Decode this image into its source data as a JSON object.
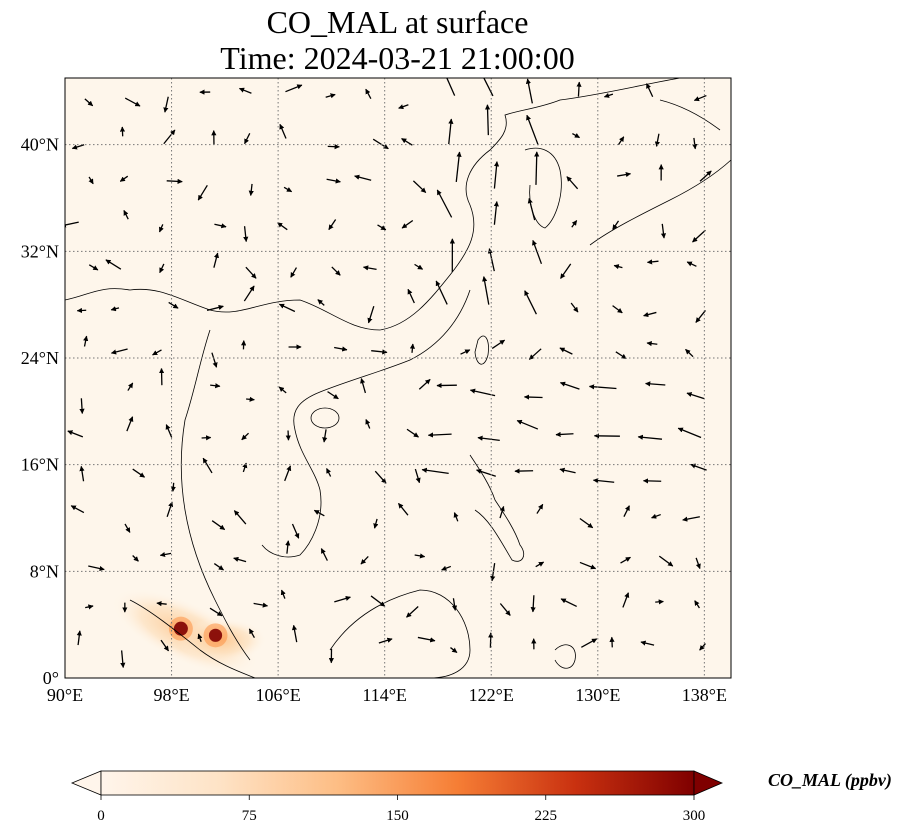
{
  "title": {
    "line1": "CO_MAL at surface",
    "line2": "Time: 2024-03-21 21:00:00"
  },
  "map": {
    "lon_range": [
      90,
      140
    ],
    "lat_range": [
      0,
      45
    ],
    "lon_ticks": [
      {
        "value": 90,
        "label": "90°E"
      },
      {
        "value": 98,
        "label": "98°E"
      },
      {
        "value": 106,
        "label": "106°E"
      },
      {
        "value": 114,
        "label": "114°E"
      },
      {
        "value": 122,
        "label": "122°E"
      },
      {
        "value": 130,
        "label": "130°E"
      },
      {
        "value": 138,
        "label": "138°E"
      }
    ],
    "lat_ticks": [
      {
        "value": 0,
        "label": "0°"
      },
      {
        "value": 8,
        "label": "8°N"
      },
      {
        "value": 16,
        "label": "16°N"
      },
      {
        "value": 24,
        "label": "24°N"
      },
      {
        "value": 32,
        "label": "32°N"
      },
      {
        "value": 40,
        "label": "40°N"
      }
    ],
    "background_color": "#fef6eb",
    "gridlines": "dotted"
  },
  "colorbar": {
    "title": "CO_MAL (ppbv)",
    "min": 0,
    "max": 300,
    "extend": "both",
    "ticks": [
      {
        "value": 0,
        "label": "0"
      },
      {
        "value": 75,
        "label": "75"
      },
      {
        "value": 150,
        "label": "150"
      },
      {
        "value": 225,
        "label": "225"
      },
      {
        "value": 300,
        "label": "300"
      }
    ],
    "colors": [
      "#fff5eb",
      "#fdd3a6",
      "#fd9243",
      "#e1541b",
      "#a11e08",
      "#7f0000"
    ]
  },
  "hotspots": [
    {
      "lon": 98.7,
      "lat": 3.7,
      "value": 300
    },
    {
      "lon": 101.3,
      "lat": 3.2,
      "value": 260
    }
  ]
}
